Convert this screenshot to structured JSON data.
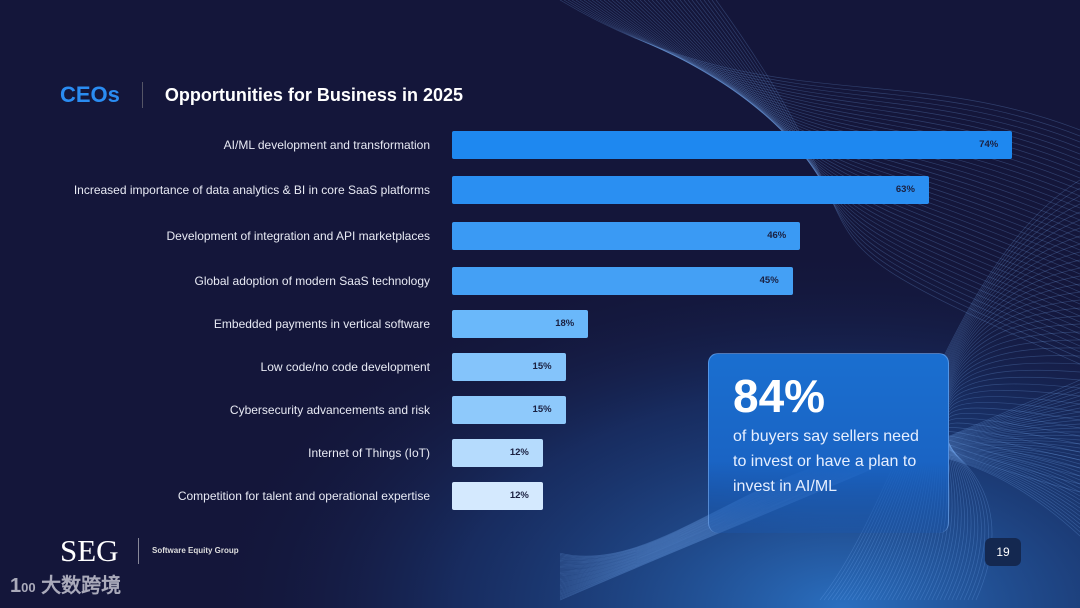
{
  "header": {
    "section": "CEOs",
    "title": "Opportunities for Business in 2025"
  },
  "chart_data": {
    "type": "bar",
    "orientation": "horizontal",
    "title": "Opportunities for Business in 2025",
    "categories": [
      "AI/ML development and transformation",
      "Increased importance of data analytics & BI in core SaaS platforms",
      "Development of integration and API marketplaces",
      "Global adoption of modern SaaS technology",
      "Embedded payments in vertical software",
      "Low code/no code development",
      "Cybersecurity advancements and risk",
      "Internet of Things (IoT)",
      "Competition for talent and operational expertise"
    ],
    "values": [
      74,
      63,
      46,
      45,
      18,
      15,
      15,
      12,
      12
    ],
    "labels": [
      "74%",
      "63%",
      "46%",
      "45%",
      "18%",
      "15%",
      "15%",
      "12%",
      "12%"
    ],
    "colors": [
      "#1e88f0",
      "#2a8ff2",
      "#3a9af4",
      "#44a0f5",
      "#6ab8fa",
      "#84c4fb",
      "#8ec9fb",
      "#b5dbfd",
      "#d4e9fe"
    ],
    "xlim": [
      0,
      100
    ]
  },
  "callout": {
    "value": "84%",
    "text": "of buyers say sellers need to invest or have a plan to invest in AI/ML"
  },
  "footer": {
    "logo": "SEG",
    "company": "Software Equity Group",
    "page": "19",
    "watermark": "大数跨境"
  }
}
